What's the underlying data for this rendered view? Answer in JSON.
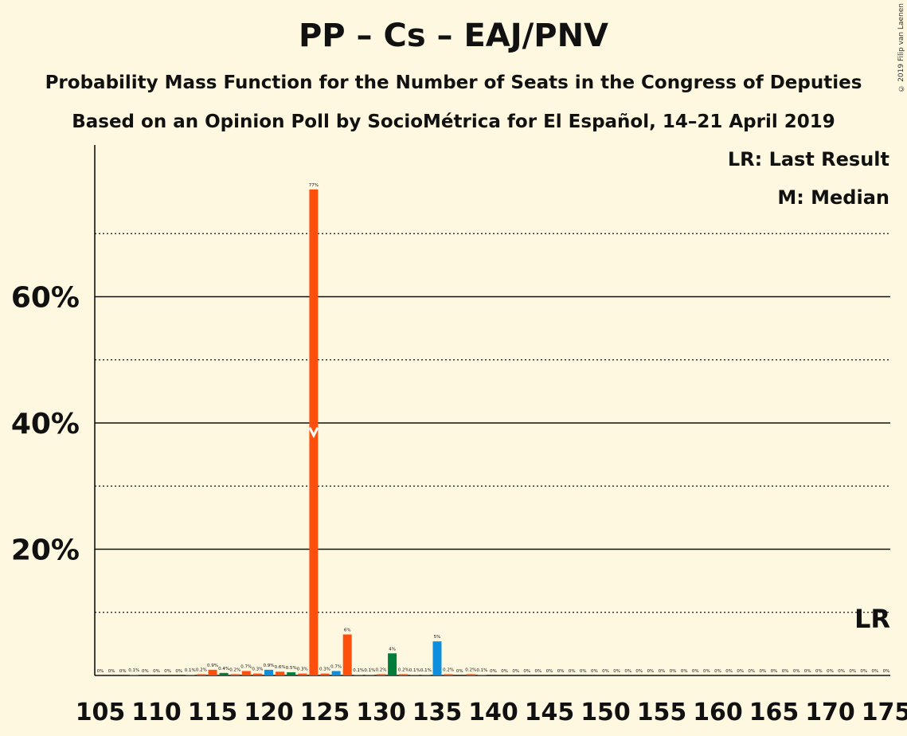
{
  "title": "PP – Cs – EAJ/PNV",
  "subtitle_1": "Probability Mass Function for the Number of Seats in the Congress of Deputies",
  "subtitle_2": "Based on an Opinion Poll by SocioMétrica for El Español, 14–21 April 2019",
  "copyright": "© 2019 Filip van Laenen",
  "legend": {
    "last_result": "LR: Last Result",
    "median": "M: Median"
  },
  "colors": {
    "background": "#fef8e1",
    "orange": "#ff4f0d",
    "green": "#007d3a",
    "blue": "#0d8fde"
  },
  "chart_data": {
    "type": "bar",
    "xlabel": "",
    "ylabel": "",
    "xlim": [
      105,
      175
    ],
    "ylim": [
      0,
      80
    ],
    "y_ticks": [
      {
        "value": 20,
        "label": "20%"
      },
      {
        "value": 40,
        "label": "40%"
      },
      {
        "value": 60,
        "label": "60%"
      }
    ],
    "x_ticks": [
      {
        "value": 105,
        "label": "105"
      },
      {
        "value": 110,
        "label": "110"
      },
      {
        "value": 115,
        "label": "115"
      },
      {
        "value": 120,
        "label": "120"
      },
      {
        "value": 125,
        "label": "125"
      },
      {
        "value": 130,
        "label": "130"
      },
      {
        "value": 135,
        "label": "135"
      },
      {
        "value": 140,
        "label": "140"
      },
      {
        "value": 145,
        "label": "145"
      },
      {
        "value": 150,
        "label": "150"
      },
      {
        "value": 155,
        "label": "155"
      },
      {
        "value": 160,
        "label": "160"
      },
      {
        "value": 165,
        "label": "165"
      },
      {
        "value": 170,
        "label": "170"
      },
      {
        "value": 175,
        "label": "175"
      }
    ],
    "solid_gridlines": [
      20,
      40,
      60
    ],
    "dotted_gridlines": [
      10,
      30,
      50,
      70
    ],
    "median_seat": 124,
    "median_marker_value": 38,
    "last_result_label": "LR",
    "bars": [
      {
        "x": 105,
        "value": 0,
        "label": "0%",
        "color": "orange"
      },
      {
        "x": 106,
        "value": 0,
        "label": "0%",
        "color": "orange"
      },
      {
        "x": 107,
        "value": 0,
        "label": "0%",
        "color": "orange"
      },
      {
        "x": 108,
        "value": 0.1,
        "label": "0.1%",
        "color": "orange"
      },
      {
        "x": 109,
        "value": 0,
        "label": "0%",
        "color": "orange"
      },
      {
        "x": 110,
        "value": 0,
        "label": "0%",
        "color": "orange"
      },
      {
        "x": 111,
        "value": 0,
        "label": "0%",
        "color": "orange"
      },
      {
        "x": 112,
        "value": 0,
        "label": "0%",
        "color": "orange"
      },
      {
        "x": 113,
        "value": 0.1,
        "label": "0.1%",
        "color": "orange"
      },
      {
        "x": 114,
        "value": 0.2,
        "label": "0.2%",
        "color": "orange"
      },
      {
        "x": 115,
        "value": 0.9,
        "label": "0.9%",
        "color": "orange"
      },
      {
        "x": 116,
        "value": 0.4,
        "label": "0.4%",
        "color": "green"
      },
      {
        "x": 117,
        "value": 0.2,
        "label": "0.2%",
        "color": "orange"
      },
      {
        "x": 118,
        "value": 0.7,
        "label": "0.7%",
        "color": "orange"
      },
      {
        "x": 119,
        "value": 0.3,
        "label": "0.3%",
        "color": "orange"
      },
      {
        "x": 120,
        "value": 0.9,
        "label": "0.9%",
        "color": "blue"
      },
      {
        "x": 121,
        "value": 0.6,
        "label": "0.6%",
        "color": "orange"
      },
      {
        "x": 122,
        "value": 0.5,
        "label": "0.5%",
        "color": "green"
      },
      {
        "x": 123,
        "value": 0.3,
        "label": "0.3%",
        "color": "orange"
      },
      {
        "x": 124,
        "value": 77,
        "label": "77%",
        "color": "orange"
      },
      {
        "x": 125,
        "value": 0.3,
        "label": "0.3%",
        "color": "orange"
      },
      {
        "x": 126,
        "value": 0.7,
        "label": "0.7%",
        "color": "blue"
      },
      {
        "x": 127,
        "value": 6.5,
        "label": "6%",
        "color": "orange"
      },
      {
        "x": 128,
        "value": 0.1,
        "label": "0.1%",
        "color": "orange"
      },
      {
        "x": 129,
        "value": 0.1,
        "label": "0.1%",
        "color": "orange"
      },
      {
        "x": 130,
        "value": 0.2,
        "label": "0.2%",
        "color": "orange"
      },
      {
        "x": 131,
        "value": 3.5,
        "label": "4%",
        "color": "green"
      },
      {
        "x": 132,
        "value": 0.2,
        "label": "0.2%",
        "color": "orange"
      },
      {
        "x": 133,
        "value": 0.1,
        "label": "0.1%",
        "color": "orange"
      },
      {
        "x": 134,
        "value": 0.1,
        "label": "0.1%",
        "color": "orange"
      },
      {
        "x": 135,
        "value": 5.4,
        "label": "5%",
        "color": "blue"
      },
      {
        "x": 136,
        "value": 0.2,
        "label": "0.2%",
        "color": "orange"
      },
      {
        "x": 137,
        "value": 0,
        "label": "0%",
        "color": "orange"
      },
      {
        "x": 138,
        "value": 0.2,
        "label": "0.2%",
        "color": "orange"
      },
      {
        "x": 139,
        "value": 0.1,
        "label": "0.1%",
        "color": "orange"
      },
      {
        "x": 140,
        "value": 0,
        "label": "0%",
        "color": "orange"
      },
      {
        "x": 141,
        "value": 0,
        "label": "0%",
        "color": "orange"
      },
      {
        "x": 142,
        "value": 0,
        "label": "0%",
        "color": "orange"
      },
      {
        "x": 143,
        "value": 0,
        "label": "0%",
        "color": "orange"
      },
      {
        "x": 144,
        "value": 0,
        "label": "0%",
        "color": "orange"
      },
      {
        "x": 145,
        "value": 0,
        "label": "0%",
        "color": "orange"
      },
      {
        "x": 146,
        "value": 0,
        "label": "0%",
        "color": "orange"
      },
      {
        "x": 147,
        "value": 0,
        "label": "0%",
        "color": "orange"
      },
      {
        "x": 148,
        "value": 0,
        "label": "0%",
        "color": "orange"
      },
      {
        "x": 149,
        "value": 0,
        "label": "0%",
        "color": "orange"
      },
      {
        "x": 150,
        "value": 0,
        "label": "0%",
        "color": "orange"
      },
      {
        "x": 151,
        "value": 0,
        "label": "0%",
        "color": "orange"
      },
      {
        "x": 152,
        "value": 0,
        "label": "0%",
        "color": "orange"
      },
      {
        "x": 153,
        "value": 0,
        "label": "0%",
        "color": "orange"
      },
      {
        "x": 154,
        "value": 0,
        "label": "0%",
        "color": "orange"
      },
      {
        "x": 155,
        "value": 0,
        "label": "0%",
        "color": "orange"
      },
      {
        "x": 156,
        "value": 0,
        "label": "0%",
        "color": "orange"
      },
      {
        "x": 157,
        "value": 0,
        "label": "0%",
        "color": "orange"
      },
      {
        "x": 158,
        "value": 0,
        "label": "0%",
        "color": "orange"
      },
      {
        "x": 159,
        "value": 0,
        "label": "0%",
        "color": "orange"
      },
      {
        "x": 160,
        "value": 0,
        "label": "0%",
        "color": "orange"
      },
      {
        "x": 161,
        "value": 0,
        "label": "0%",
        "color": "orange"
      },
      {
        "x": 162,
        "value": 0,
        "label": "0%",
        "color": "orange"
      },
      {
        "x": 163,
        "value": 0,
        "label": "0%",
        "color": "orange"
      },
      {
        "x": 164,
        "value": 0,
        "label": "0%",
        "color": "orange"
      },
      {
        "x": 165,
        "value": 0,
        "label": "0%",
        "color": "orange"
      },
      {
        "x": 166,
        "value": 0,
        "label": "0%",
        "color": "orange"
      },
      {
        "x": 167,
        "value": 0,
        "label": "0%",
        "color": "orange"
      },
      {
        "x": 168,
        "value": 0,
        "label": "0%",
        "color": "orange"
      },
      {
        "x": 169,
        "value": 0,
        "label": "0%",
        "color": "orange"
      },
      {
        "x": 170,
        "value": 0,
        "label": "0%",
        "color": "orange"
      },
      {
        "x": 171,
        "value": 0,
        "label": "0%",
        "color": "orange"
      },
      {
        "x": 172,
        "value": 0,
        "label": "0%",
        "color": "orange"
      },
      {
        "x": 173,
        "value": 0,
        "label": "0%",
        "color": "orange"
      },
      {
        "x": 174,
        "value": 0,
        "label": "0%",
        "color": "orange"
      },
      {
        "x": 175,
        "value": 0,
        "label": "0%",
        "color": "orange"
      }
    ]
  }
}
